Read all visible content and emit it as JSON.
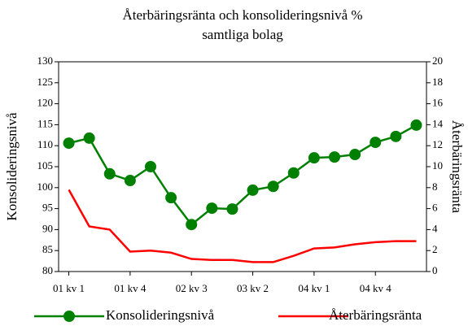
{
  "chart_data": {
    "type": "line",
    "title": [
      "Återbäringsränta och konsolideringsnivå %",
      "samtliga bolag"
    ],
    "ylabel": "Konsolideringsnivå",
    "y2label": "Återbäringsränta",
    "categories": [
      "01 kv 1",
      null,
      null,
      "01 kv 4",
      null,
      null,
      "02 kv 3",
      null,
      null,
      "03 kv 2",
      null,
      null,
      "04 kv 1",
      null,
      null,
      "04 kv 4",
      null,
      null
    ],
    "ylim": [
      80,
      130
    ],
    "yticks": [
      80,
      85,
      90,
      95,
      100,
      105,
      110,
      115,
      120,
      125,
      130
    ],
    "y2lim": [
      0,
      20
    ],
    "y2ticks": [
      0,
      2,
      4,
      6,
      8,
      10,
      12,
      14,
      16,
      18,
      20
    ],
    "legend": "bottom",
    "series": [
      {
        "name": "Konsolideringsnivå",
        "color": "#008000",
        "marker": true,
        "values": [
          110.6,
          111.8,
          103.3,
          101.7,
          105.0,
          97.6,
          91.2,
          95.1,
          94.9,
          99.4,
          100.3,
          103.5,
          107.1,
          107.3,
          107.9,
          110.8,
          112.2,
          114.9
        ]
      },
      {
        "name": "Återbäringsränta",
        "color": "#ff0000",
        "axis": "y2",
        "marker": false,
        "values": [
          7.8,
          4.3,
          4.0,
          1.9,
          2.0,
          1.8,
          1.2,
          1.1,
          1.1,
          0.9,
          0.9,
          1.5,
          2.2,
          2.3,
          2.6,
          2.8,
          2.9,
          2.9
        ]
      }
    ]
  }
}
